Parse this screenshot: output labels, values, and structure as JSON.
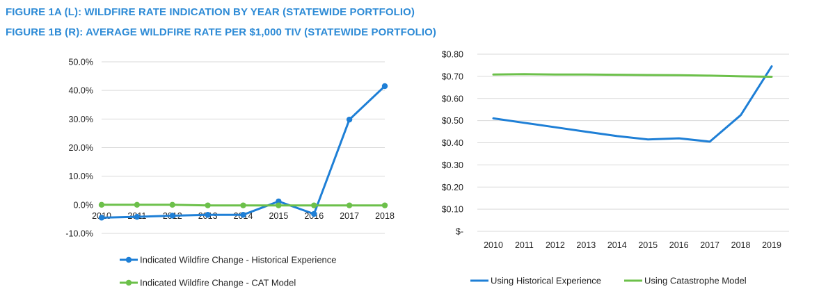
{
  "titles": {
    "fig1a": "FIGURE 1A (L): WILDFIRE RATE INDICATION BY YEAR (STATEWIDE PORTFOLIO)",
    "fig1b": "FIGURE 1B (R): AVERAGE WILDFIRE RATE PER $1,000 TIV (STATEWIDE PORTFOLIO)"
  },
  "colors": {
    "title": "#2e8bd6",
    "blue": "#1e7fd6",
    "green": "#6cc04a",
    "grid": "#d9d9d9"
  },
  "chart_data": [
    {
      "type": "line",
      "categories": [
        "2010",
        "2011",
        "2012",
        "2013",
        "2014",
        "2015",
        "2016",
        "2017",
        "2018"
      ],
      "series": [
        {
          "name": "Indicated Wildfire Change - Historical Experience",
          "color": "#1e7fd6",
          "markers": true,
          "values": [
            -4.5,
            -4.2,
            -3.8,
            -3.5,
            -3.5,
            1.2,
            -3.2,
            29.8,
            41.5
          ]
        },
        {
          "name": "Indicated Wildfire Change - CAT Model",
          "color": "#6cc04a",
          "markers": true,
          "values": [
            0.0,
            0.0,
            0.0,
            -0.2,
            -0.2,
            -0.2,
            -0.2,
            -0.2,
            -0.2
          ]
        }
      ],
      "ylim": [
        -10,
        50
      ],
      "yticks": [
        -10,
        0,
        10,
        20,
        30,
        40,
        50
      ],
      "ytick_labels": [
        "-10.0%",
        "0.0%",
        "10.0%",
        "20.0%",
        "30.0%",
        "40.0%",
        "50.0%"
      ],
      "grid": true,
      "legend_position": "bottom"
    },
    {
      "type": "line",
      "categories": [
        "2010",
        "2011",
        "2012",
        "2013",
        "2014",
        "2015",
        "2016",
        "2017",
        "2018",
        "2019"
      ],
      "series": [
        {
          "name": "Using Historical Experience",
          "color": "#1e7fd6",
          "markers": false,
          "values": [
            0.51,
            0.49,
            0.47,
            0.45,
            0.43,
            0.415,
            0.42,
            0.405,
            0.525,
            0.745
          ]
        },
        {
          "name": "Using Catastrophe Model",
          "color": "#6cc04a",
          "markers": false,
          "values": [
            0.708,
            0.71,
            0.708,
            0.708,
            0.707,
            0.706,
            0.705,
            0.703,
            0.7,
            0.698
          ]
        }
      ],
      "ylim": [
        0,
        0.8
      ],
      "yticks": [
        0,
        0.1,
        0.2,
        0.3,
        0.4,
        0.5,
        0.6,
        0.7,
        0.8
      ],
      "ytick_labels": [
        "$-",
        "$0.10",
        "$0.20",
        "$0.30",
        "$0.40",
        "$0.50",
        "$0.60",
        "$0.70",
        "$0.80"
      ],
      "grid": true,
      "legend_position": "bottom"
    }
  ]
}
